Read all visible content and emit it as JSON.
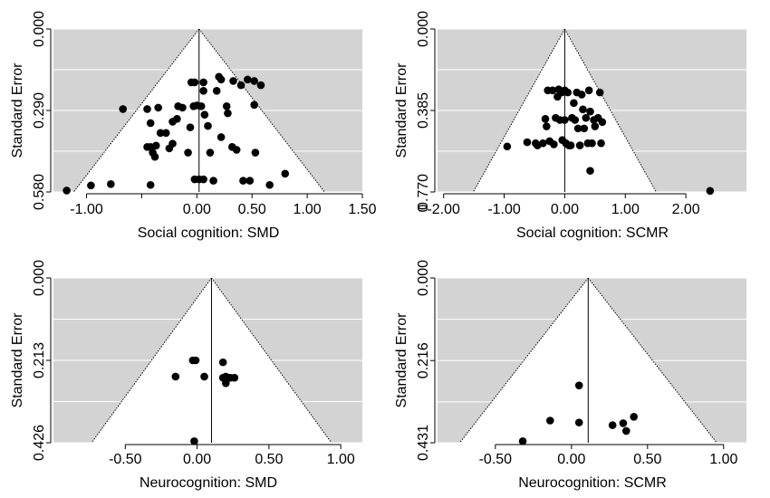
{
  "chart_data": [
    {
      "type": "scatter",
      "xlabel": "Social cognition: SMD",
      "ylabel": "Standard Error",
      "xlim": [
        -1.3,
        1.5
      ],
      "ylim": [
        0.58,
        0.0
      ],
      "x_ticks": [
        -1.0,
        -0.5,
        0.0,
        0.5,
        1.0,
        1.5
      ],
      "x_tick_labels": [
        "-1.00",
        "",
        "0.00",
        "0.50",
        "1.00",
        "1.50"
      ],
      "y_ticks": [
        0.0,
        0.29,
        0.58
      ],
      "y_tick_labels": [
        "0.000",
        "0.290",
        "0.580"
      ],
      "gridlines_y": [
        0.0,
        0.145,
        0.29,
        0.435,
        0.58
      ],
      "summary_effect": 0.02,
      "funnel_apex": 0.02,
      "funnel_half_width_per_se": 1.96,
      "points": [
        {
          "x": -1.18,
          "y": 0.575
        },
        {
          "x": -0.96,
          "y": 0.557
        },
        {
          "x": -0.78,
          "y": 0.552
        },
        {
          "x": -0.67,
          "y": 0.285
        },
        {
          "x": -0.42,
          "y": 0.555
        },
        {
          "x": -0.42,
          "y": 0.42
        },
        {
          "x": -0.45,
          "y": 0.42
        },
        {
          "x": -0.4,
          "y": 0.44
        },
        {
          "x": -0.37,
          "y": 0.415
        },
        {
          "x": -0.45,
          "y": 0.285
        },
        {
          "x": -0.42,
          "y": 0.335
        },
        {
          "x": -0.35,
          "y": 0.28
        },
        {
          "x": -0.33,
          "y": 0.37
        },
        {
          "x": -0.38,
          "y": 0.455
        },
        {
          "x": -0.28,
          "y": 0.37
        },
        {
          "x": -0.25,
          "y": 0.425
        },
        {
          "x": -0.22,
          "y": 0.408
        },
        {
          "x": -0.17,
          "y": 0.275
        },
        {
          "x": -0.22,
          "y": 0.33
        },
        {
          "x": -0.18,
          "y": 0.32
        },
        {
          "x": -0.13,
          "y": 0.28
        },
        {
          "x": -0.08,
          "y": 0.44
        },
        {
          "x": -0.06,
          "y": 0.35
        },
        {
          "x": -0.05,
          "y": 0.19
        },
        {
          "x": -0.02,
          "y": 0.19
        },
        {
          "x": -0.03,
          "y": 0.275
        },
        {
          "x": 0.0,
          "y": 0.272
        },
        {
          "x": -0.02,
          "y": 0.535
        },
        {
          "x": 0.02,
          "y": 0.535
        },
        {
          "x": 0.06,
          "y": 0.535
        },
        {
          "x": 0.06,
          "y": 0.19
        },
        {
          "x": 0.06,
          "y": 0.22
        },
        {
          "x": 0.04,
          "y": 0.275
        },
        {
          "x": 0.07,
          "y": 0.305
        },
        {
          "x": 0.1,
          "y": 0.345
        },
        {
          "x": 0.12,
          "y": 0.44
        },
        {
          "x": 0.15,
          "y": 0.54
        },
        {
          "x": 0.18,
          "y": 0.22
        },
        {
          "x": 0.2,
          "y": 0.17
        },
        {
          "x": 0.22,
          "y": 0.18
        },
        {
          "x": 0.22,
          "y": 0.385
        },
        {
          "x": 0.27,
          "y": 0.275
        },
        {
          "x": 0.28,
          "y": 0.3
        },
        {
          "x": 0.32,
          "y": 0.42
        },
        {
          "x": 0.33,
          "y": 0.185
        },
        {
          "x": 0.36,
          "y": 0.43
        },
        {
          "x": 0.4,
          "y": 0.2
        },
        {
          "x": 0.42,
          "y": 0.54
        },
        {
          "x": 0.46,
          "y": 0.18
        },
        {
          "x": 0.48,
          "y": 0.54
        },
        {
          "x": 0.52,
          "y": 0.185
        },
        {
          "x": 0.52,
          "y": 0.27
        },
        {
          "x": 0.53,
          "y": 0.44
        },
        {
          "x": 0.58,
          "y": 0.2
        },
        {
          "x": 0.66,
          "y": 0.555
        },
        {
          "x": 0.8,
          "y": 0.515
        }
      ]
    },
    {
      "type": "scatter",
      "xlabel": "Social cognition: SCMR",
      "ylabel": "Standard Error",
      "xlim": [
        -2.1,
        3.0
      ],
      "ylim": [
        0.77,
        0.0
      ],
      "x_ticks": [
        -2.0,
        -1.0,
        0.0,
        1.0,
        2.0
      ],
      "x_tick_labels": [
        "-2.00",
        "-1.00",
        "0.00",
        "1.00",
        "2.00"
      ],
      "y_ticks": [
        0.0,
        0.385,
        0.77
      ],
      "y_tick_labels": [
        "0.000",
        "0.385",
        "0.770"
      ],
      "y_overlap_label": "0",
      "gridlines_y": [
        0.0,
        0.1925,
        0.385,
        0.5775,
        0.77
      ],
      "summary_effect": 0.0,
      "funnel_apex": 0.0,
      "funnel_half_width_per_se": 1.96,
      "points": [
        {
          "x": -0.95,
          "y": 0.555
        },
        {
          "x": -0.62,
          "y": 0.535
        },
        {
          "x": -0.48,
          "y": 0.54
        },
        {
          "x": -0.45,
          "y": 0.55
        },
        {
          "x": -0.36,
          "y": 0.54
        },
        {
          "x": -0.32,
          "y": 0.425
        },
        {
          "x": -0.3,
          "y": 0.46
        },
        {
          "x": -0.28,
          "y": 0.29
        },
        {
          "x": -0.25,
          "y": 0.53
        },
        {
          "x": -0.2,
          "y": 0.29
        },
        {
          "x": -0.18,
          "y": 0.545
        },
        {
          "x": -0.15,
          "y": 0.42
        },
        {
          "x": -0.12,
          "y": 0.32
        },
        {
          "x": -0.1,
          "y": 0.285
        },
        {
          "x": -0.08,
          "y": 0.43
        },
        {
          "x": -0.05,
          "y": 0.3
        },
        {
          "x": -0.04,
          "y": 0.525
        },
        {
          "x": 0.0,
          "y": 0.29
        },
        {
          "x": 0.0,
          "y": 0.43
        },
        {
          "x": 0.02,
          "y": 0.54
        },
        {
          "x": 0.05,
          "y": 0.3
        },
        {
          "x": 0.07,
          "y": 0.55
        },
        {
          "x": 0.1,
          "y": 0.55
        },
        {
          "x": 0.12,
          "y": 0.42
        },
        {
          "x": 0.15,
          "y": 0.35
        },
        {
          "x": 0.17,
          "y": 0.43
        },
        {
          "x": 0.2,
          "y": 0.3
        },
        {
          "x": 0.22,
          "y": 0.47
        },
        {
          "x": 0.25,
          "y": 0.55
        },
        {
          "x": 0.28,
          "y": 0.31
        },
        {
          "x": 0.3,
          "y": 0.38
        },
        {
          "x": 0.32,
          "y": 0.47
        },
        {
          "x": 0.35,
          "y": 0.42
        },
        {
          "x": 0.38,
          "y": 0.54
        },
        {
          "x": 0.4,
          "y": 0.29
        },
        {
          "x": 0.42,
          "y": 0.39
        },
        {
          "x": 0.45,
          "y": 0.54
        },
        {
          "x": 0.48,
          "y": 0.43
        },
        {
          "x": 0.42,
          "y": 0.67
        },
        {
          "x": 0.5,
          "y": 0.46
        },
        {
          "x": 0.55,
          "y": 0.42
        },
        {
          "x": 0.58,
          "y": 0.3
        },
        {
          "x": 0.6,
          "y": 0.54
        },
        {
          "x": 0.62,
          "y": 0.44
        },
        {
          "x": 2.4,
          "y": 0.765
        }
      ]
    },
    {
      "type": "scatter",
      "xlabel": "Neurocognition: SMD",
      "ylabel": "Standard Error",
      "xlim": [
        -1.0,
        1.15
      ],
      "ylim": [
        0.426,
        0.0
      ],
      "x_ticks": [
        -0.5,
        0.0,
        0.5,
        1.0
      ],
      "x_tick_labels": [
        "-0.50",
        "0.00",
        "0.50",
        "1.00"
      ],
      "y_ticks": [
        0.0,
        0.213,
        0.426
      ],
      "y_tick_labels": [
        "0.000",
        "0.213",
        "0.426"
      ],
      "gridlines_y": [
        0.0,
        0.1065,
        0.213,
        0.3195,
        0.426
      ],
      "summary_effect": 0.1,
      "funnel_apex": 0.1,
      "funnel_half_width_per_se": 1.96,
      "points": [
        {
          "x": -0.15,
          "y": 0.255
        },
        {
          "x": -0.03,
          "y": 0.213
        },
        {
          "x": -0.01,
          "y": 0.213
        },
        {
          "x": -0.02,
          "y": 0.422
        },
        {
          "x": 0.05,
          "y": 0.255
        },
        {
          "x": 0.18,
          "y": 0.218
        },
        {
          "x": 0.18,
          "y": 0.258
        },
        {
          "x": 0.2,
          "y": 0.255
        },
        {
          "x": 0.2,
          "y": 0.272
        },
        {
          "x": 0.23,
          "y": 0.258
        },
        {
          "x": 0.26,
          "y": 0.258
        }
      ]
    },
    {
      "type": "scatter",
      "xlabel": "Neurocognition: SCMR",
      "ylabel": "Standard Error",
      "xlim": [
        -0.88,
        1.15
      ],
      "ylim": [
        0.431,
        0.0
      ],
      "x_ticks": [
        -0.5,
        0.0,
        0.5,
        1.0
      ],
      "x_tick_labels": [
        "-0.50",
        "0.00",
        "0.50",
        "1.00"
      ],
      "y_ticks": [
        0.0,
        0.216,
        0.431
      ],
      "y_tick_labels": [
        "0.000",
        "0.216",
        "0.431"
      ],
      "gridlines_y": [
        0.0,
        0.108,
        0.216,
        0.324,
        0.431
      ],
      "summary_effect": 0.11,
      "funnel_apex": 0.11,
      "funnel_half_width_per_se": 1.96,
      "points": [
        {
          "x": -0.32,
          "y": 0.427
        },
        {
          "x": -0.14,
          "y": 0.373
        },
        {
          "x": 0.05,
          "y": 0.281
        },
        {
          "x": 0.05,
          "y": 0.378
        },
        {
          "x": 0.27,
          "y": 0.385
        },
        {
          "x": 0.34,
          "y": 0.38
        },
        {
          "x": 0.36,
          "y": 0.4
        },
        {
          "x": 0.41,
          "y": 0.363
        }
      ]
    }
  ]
}
